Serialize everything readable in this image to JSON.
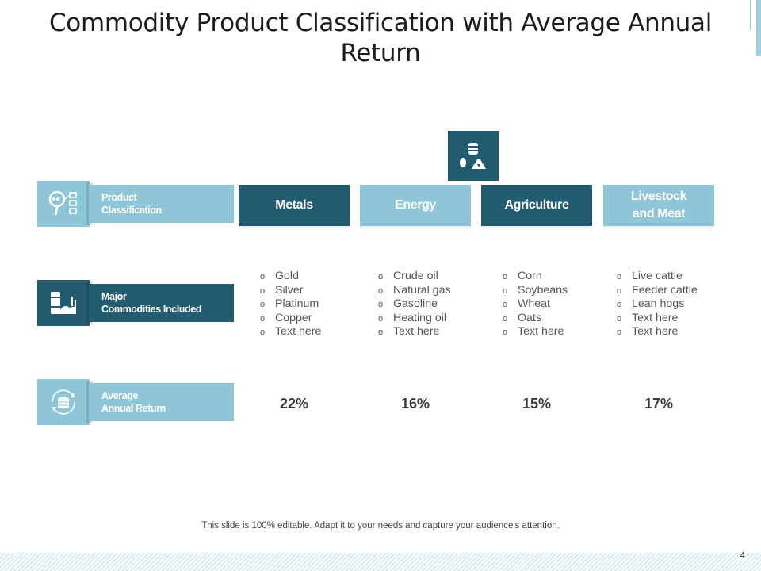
{
  "title": "Commodity Product Classification with Average Annual Return",
  "rows": [
    {
      "line1": "Product",
      "line2": "Classification",
      "icon": "magnifier-document-icon"
    },
    {
      "line1": "Major",
      "line2": "Commodities Included",
      "icon": "barrels-factory-icon"
    },
    {
      "line1": "Average",
      "line2": "Annual Return",
      "icon": "coins-cycle-icon"
    }
  ],
  "top_icon": "barrel-gold-bars-icon",
  "columns": [
    {
      "name": "Metals",
      "items": [
        "Gold",
        "Silver",
        "Platinum",
        "Copper",
        "Text here"
      ],
      "return": "22%"
    },
    {
      "name": "Energy",
      "items": [
        "Crude oil",
        "Natural gas",
        "Gasoline",
        "Heating oil",
        "Text here"
      ],
      "return": "16%"
    },
    {
      "name": "Agriculture",
      "items": [
        "Corn",
        "Soybeans",
        "Wheat",
        "Oats",
        "Text here"
      ],
      "return": "15%"
    },
    {
      "name": "Livestock and Meat",
      "items": [
        "Live cattle",
        "Feeder cattle",
        "Lean hogs",
        "Text here",
        "Text here"
      ],
      "return": "17%"
    }
  ],
  "footer": "This slide is 100% editable. Adapt it to your needs and capture your audience's attention.",
  "page_number": "4",
  "colors": {
    "dark": "#235b70",
    "light": "#8ec6d8",
    "accent_line": "#9fcfdc"
  }
}
